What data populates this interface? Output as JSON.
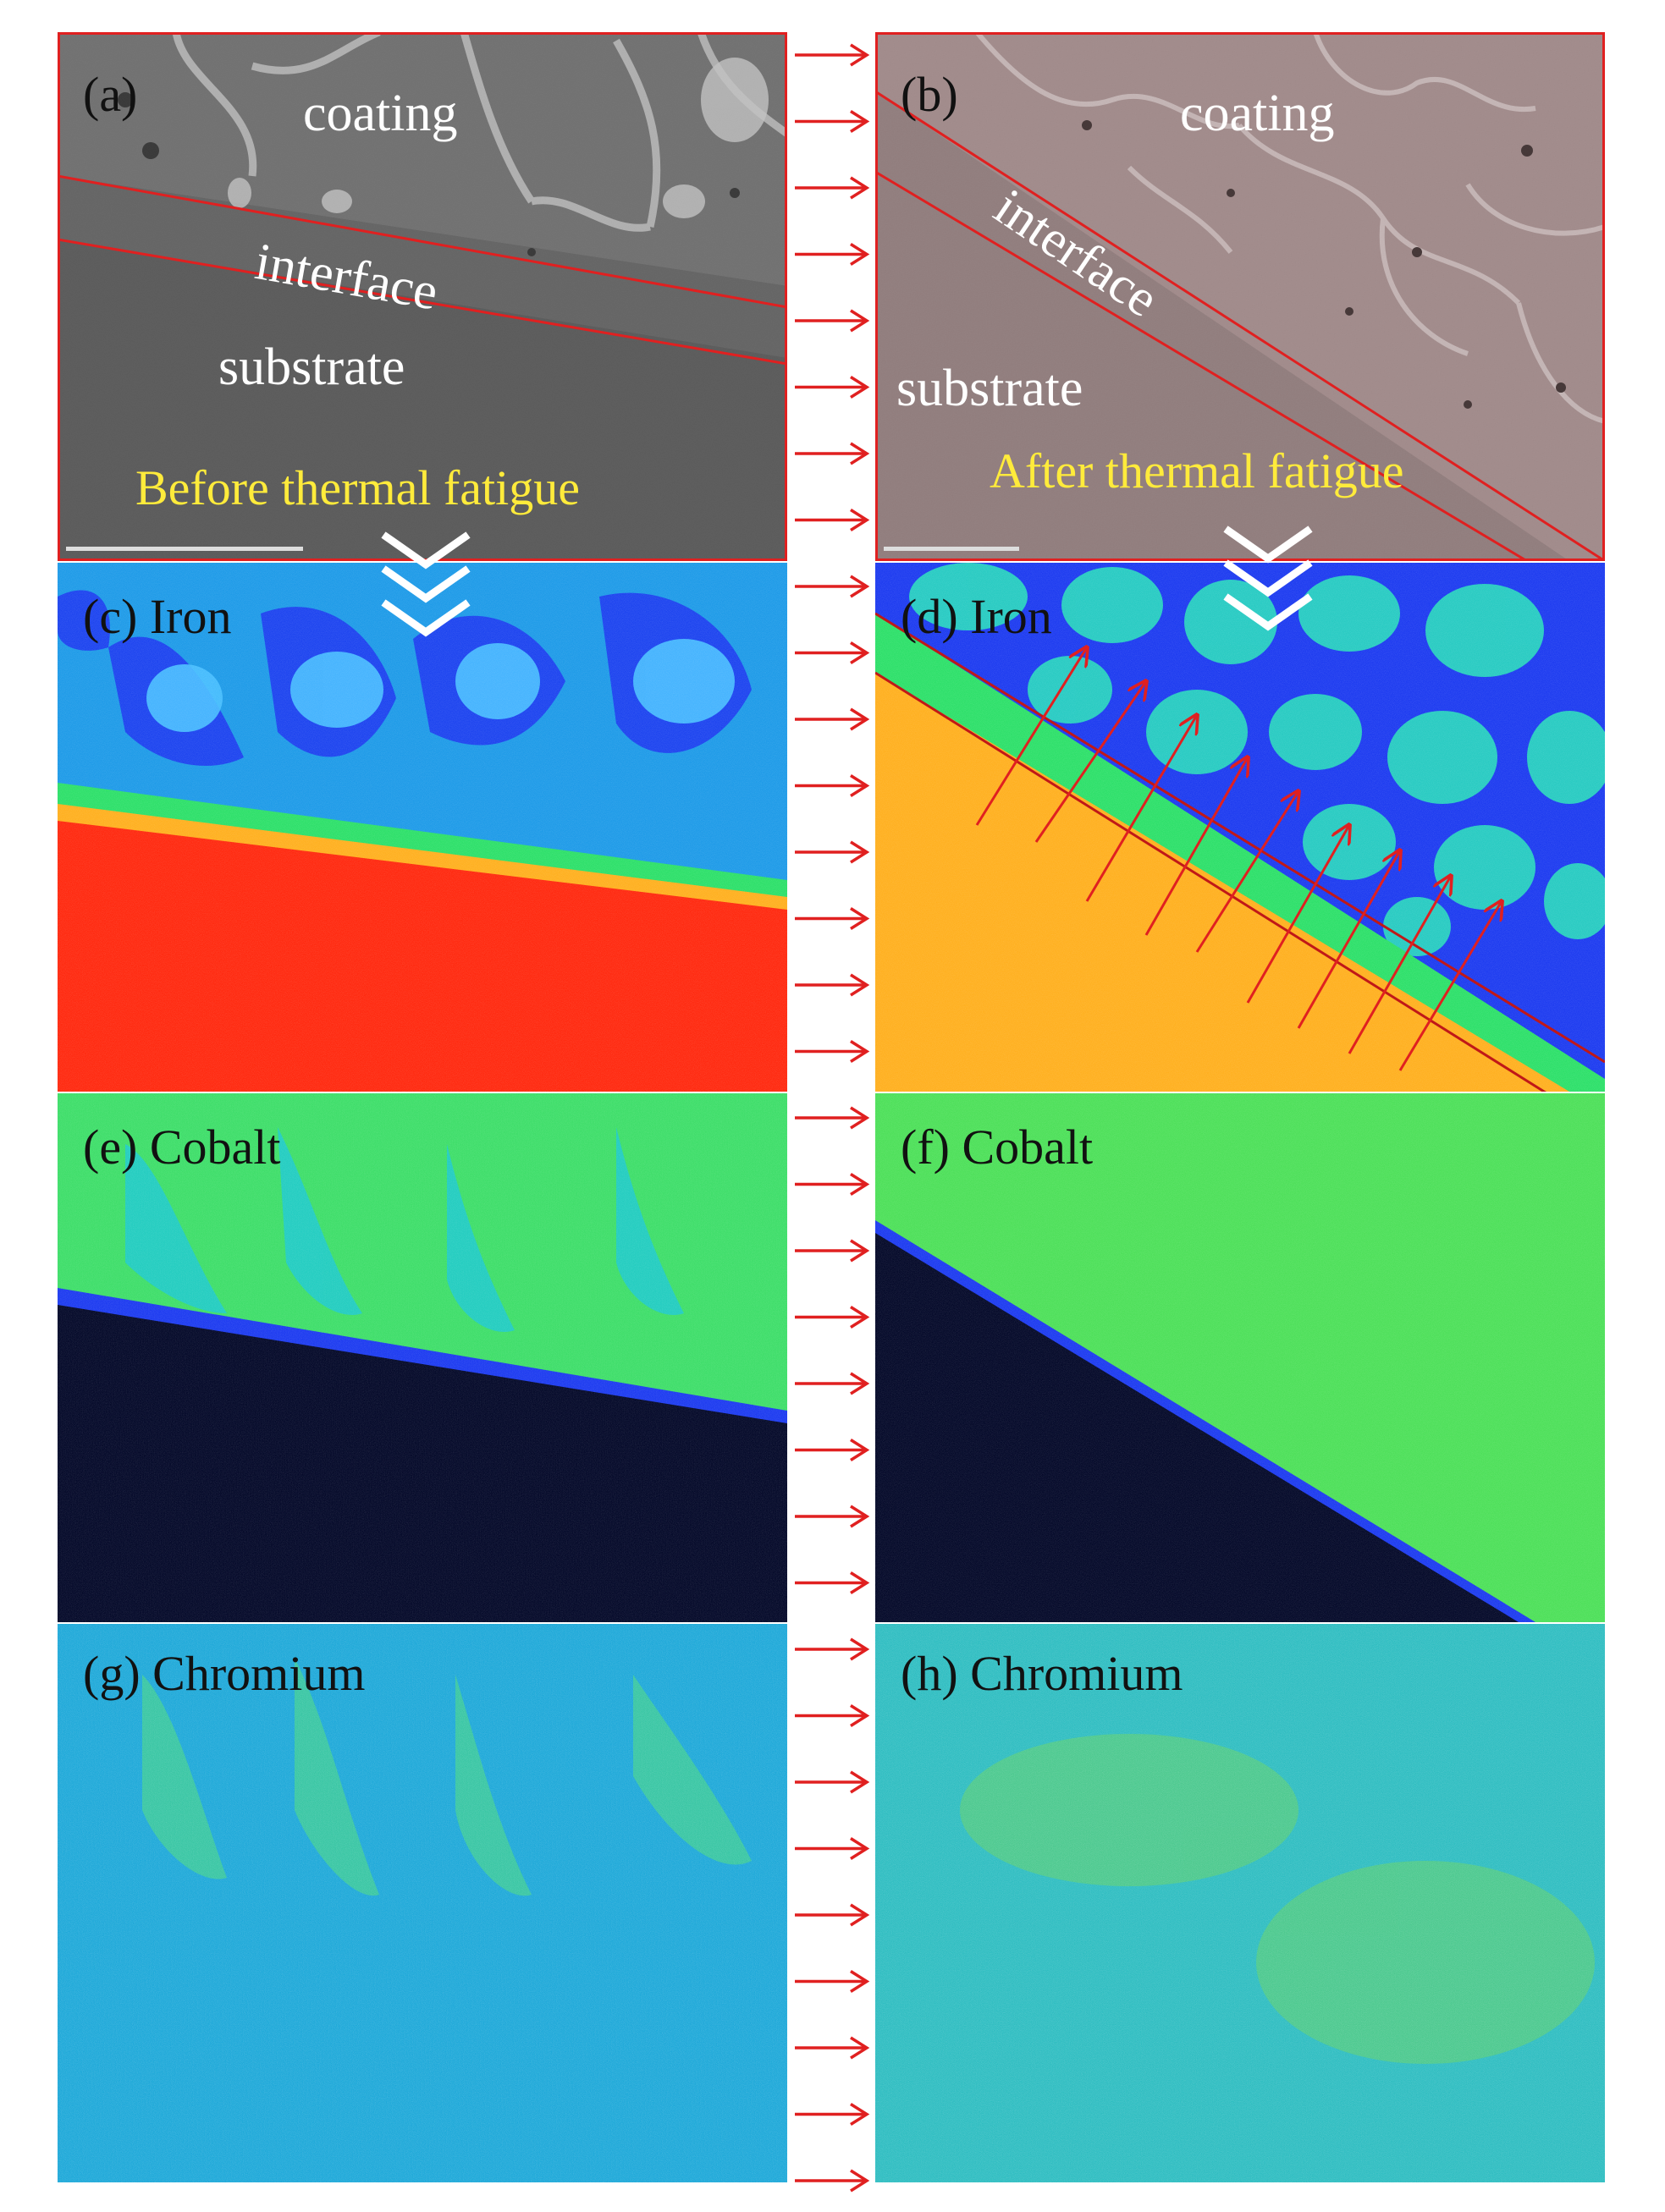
{
  "colors": {
    "panel_border": "#e02020",
    "annotation_red": "#e02020",
    "label_yellow": "#ffeb3b",
    "map_red": "#ff2a10",
    "map_orange": "#ffb020",
    "map_green": "#2ee06a",
    "map_cyan": "#19c6e6",
    "map_blue": "#1e3cf0",
    "map_dark": "#050a2a"
  },
  "icons": {
    "arrow": "right-arrow-icon",
    "chevrons": "triple-chevron-down-icon"
  },
  "panels": {
    "a": {
      "label": "(a)",
      "coating": "coating",
      "interface": "interface",
      "substrate": "substrate",
      "caption": "Before thermal fatigue"
    },
    "b": {
      "label": "(b)",
      "coating": "coating",
      "interface": "interface",
      "substrate": "substrate",
      "caption": "After thermal fatigue"
    },
    "c": {
      "label": "(c) Iron"
    },
    "d": {
      "label": "(d) Iron"
    },
    "e": {
      "label": "(e) Cobalt"
    },
    "f": {
      "label": "(f) Cobalt"
    },
    "g": {
      "label": "(g) Chromium"
    },
    "h": {
      "label": "(h) Chromium"
    }
  }
}
